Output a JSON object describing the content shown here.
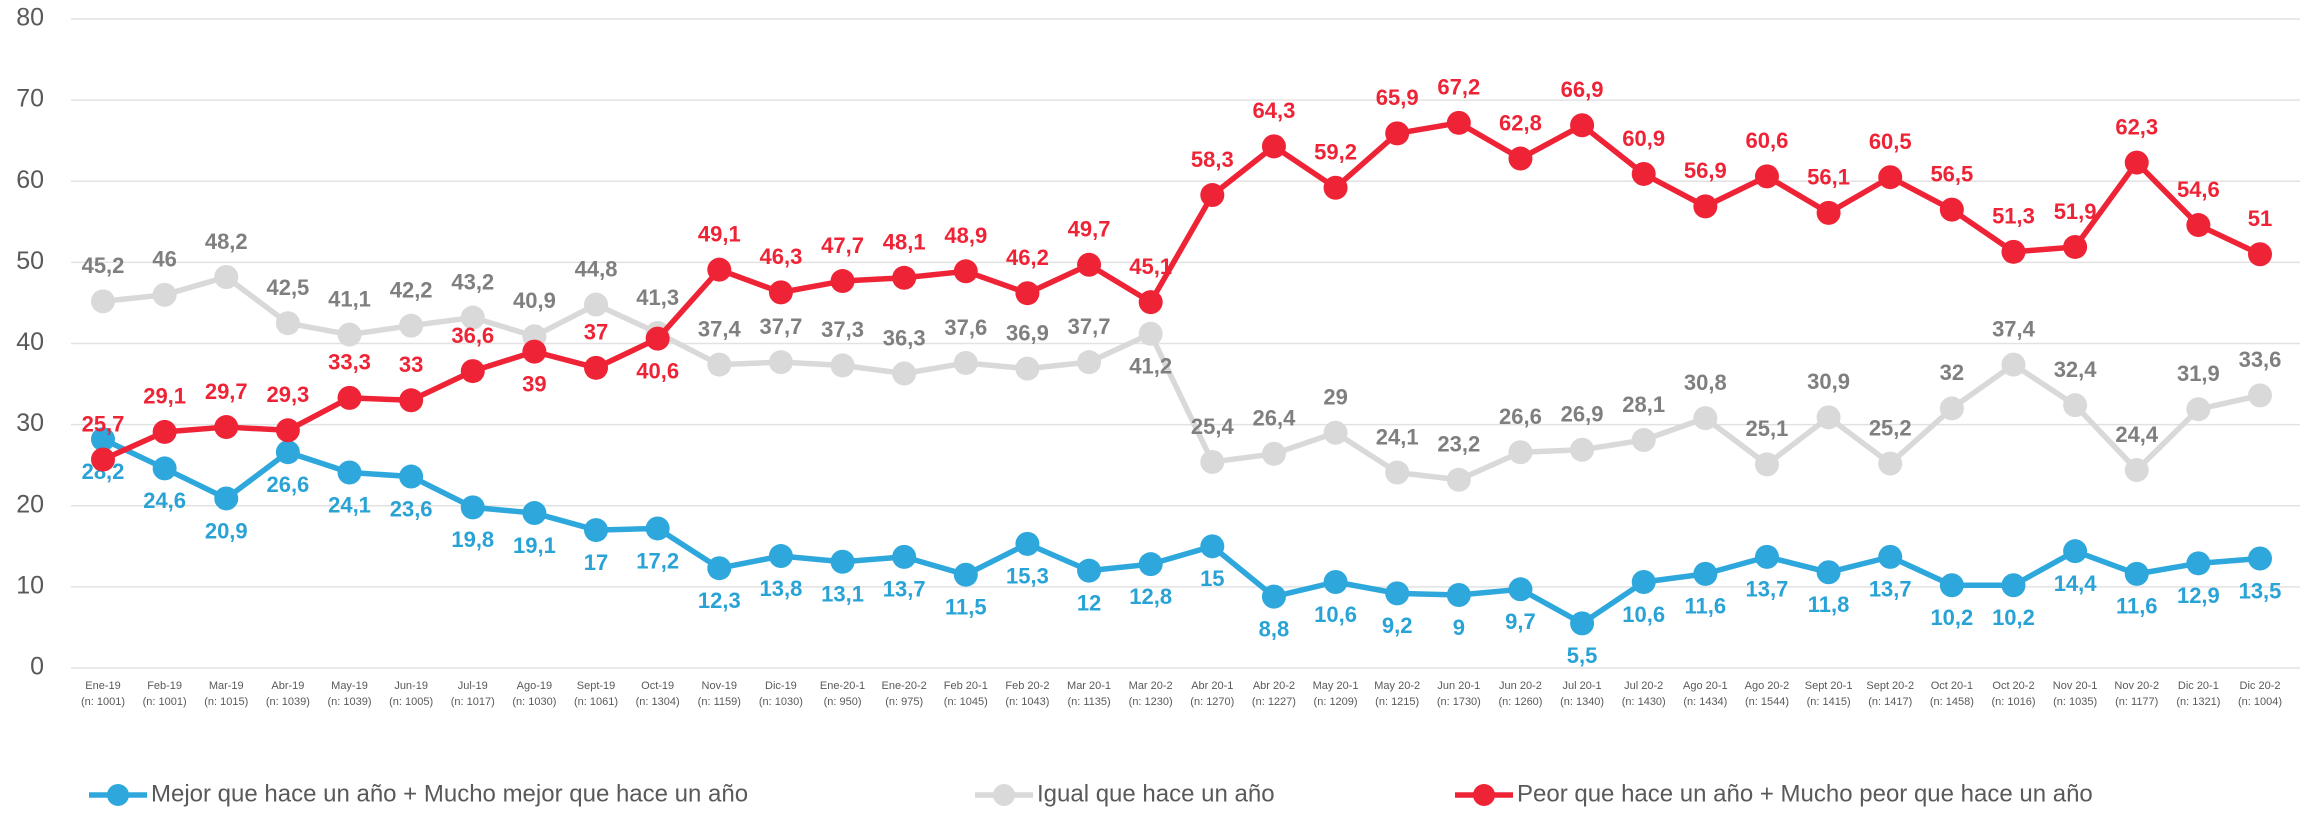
{
  "chart_data": {
    "type": "line",
    "categories": [
      "Ene-19",
      "Feb-19",
      "Mar-19",
      "Abr-19",
      "May-19",
      "Jun-19",
      "Jul-19",
      "Ago-19",
      "Sept-19",
      "Oct-19",
      "Nov-19",
      "Dic-19",
      "Ene-20-1",
      "Ene-20-2",
      "Feb 20-1",
      "Feb 20-2",
      "Mar 20-1",
      "Mar 20-2",
      "Abr 20-1",
      "Abr 20-2",
      "May 20-1",
      "May 20-2",
      "Jun 20-1",
      "Jun 20-2",
      "Jul 20-1",
      "Jul 20-2",
      "Ago 20-1",
      "Ago 20-2",
      "Sept 20-1",
      "Sept 20-2",
      "Oct 20-1",
      "Oct 20-2",
      "Nov 20-1",
      "Nov 20-2",
      "Dic 20-1",
      "Dic 20-2"
    ],
    "category_notes": [
      "(n: 1001)",
      "(n: 1001)",
      "(n: 1015)",
      "(n: 1039)",
      "(n: 1039)",
      "(n: 1005)",
      "(n: 1017)",
      "(n: 1030)",
      "(n: 1061)",
      "(n: 1304)",
      "(n: 1159)",
      "(n: 1030)",
      "(n: 950)",
      "(n: 975)",
      "(n: 1045)",
      "(n: 1043)",
      "(n: 1135)",
      "(n: 1230)",
      "(n: 1270)",
      "(n: 1227)",
      "(n: 1209)",
      "(n: 1215)",
      "(n: 1730)",
      "(n: 1260)",
      "(n: 1340)",
      "(n: 1430)",
      "(n: 1434)",
      "(n: 1544)",
      "(n: 1415)",
      "(n: 1417)",
      "(n: 1458)",
      "(n: 1016)",
      "(n: 1035)",
      "(n: 1177)",
      "(n: 1321)",
      "(n: 1004)"
    ],
    "series": [
      {
        "name": "Mejor que hace un año + Mucho mejor que hace un año",
        "color": "#2ea8dc",
        "label_color": "#29a3d6",
        "values": [
          28.2,
          24.6,
          20.9,
          26.6,
          24.1,
          23.6,
          19.8,
          19.1,
          17,
          17.2,
          12.3,
          13.8,
          13.1,
          13.7,
          11.5,
          15.3,
          12,
          12.8,
          15,
          8.8,
          10.6,
          9.2,
          9,
          9.7,
          5.5,
          10.6,
          11.6,
          13.7,
          11.8,
          13.7,
          10.2,
          10.2,
          14.4,
          11.6,
          12.9,
          13.5
        ],
        "value_labels": [
          "28,2",
          "24,6",
          "20,9",
          "26,6",
          "24,1",
          "23,6",
          "19,8",
          "19,1",
          "17",
          "17,2",
          "12,3",
          "13,8",
          "13,1",
          "13,7",
          "11,5",
          "15,3",
          "12",
          "12,8",
          "15",
          "8,8",
          "10,6",
          "9,2",
          "9",
          "9,7",
          "5,5",
          "10,6",
          "11,6",
          "13,7",
          "11,8",
          "13,7",
          "10,2",
          "10,2",
          "14,4",
          "11,6",
          "12,9",
          "13,5"
        ]
      },
      {
        "name": "Igual que hace un año",
        "color": "#d9d9d9",
        "label_color": "#7f7f7f",
        "values": [
          45.2,
          46,
          48.2,
          42.5,
          41.1,
          42.2,
          43.2,
          40.9,
          44.8,
          41.3,
          37.4,
          37.7,
          37.3,
          36.3,
          37.6,
          36.9,
          37.7,
          41.2,
          25.4,
          26.4,
          29,
          24.1,
          23.2,
          26.6,
          26.9,
          28.1,
          30.8,
          25.1,
          30.9,
          25.2,
          32,
          37.4,
          32.4,
          24.4,
          31.9,
          33.6
        ],
        "value_labels": [
          "45,2",
          "46",
          "48,2",
          "42,5",
          "41,1",
          "42,2",
          "43,2",
          "40,9",
          "44,8",
          "41,3",
          "37,4",
          "37,7",
          "37,3",
          "36,3",
          "37,6",
          "36,9",
          "37,7",
          "41,2",
          "25,4",
          "26,4",
          "29",
          "24,1",
          "23,2",
          "26,6",
          "26,9",
          "28,1",
          "30,8",
          "25,1",
          "30,9",
          "25,2",
          "32",
          "37,4",
          "32,4",
          "24,4",
          "31,9",
          "33,6"
        ]
      },
      {
        "name": "Peor que hace un año + Mucho peor que hace un año",
        "color": "#ee2436",
        "label_color": "#ee2436",
        "values": [
          25.7,
          29.1,
          29.7,
          29.3,
          33.3,
          33,
          36.6,
          39,
          37,
          40.6,
          49.1,
          46.3,
          47.7,
          48.1,
          48.9,
          46.2,
          49.7,
          45.1,
          58.3,
          64.3,
          59.2,
          65.9,
          67.2,
          62.8,
          66.9,
          60.9,
          56.9,
          60.6,
          56.1,
          60.5,
          56.5,
          51.3,
          51.9,
          62.3,
          54.6,
          51
        ],
        "value_labels": [
          "25,7",
          "29,1",
          "29,7",
          "29,3",
          "33,3",
          "33",
          "36,6",
          "39",
          "37",
          "40,6",
          "49,1",
          "46,3",
          "47,7",
          "48,1",
          "48,9",
          "46,2",
          "49,7",
          "45,1",
          "58,3",
          "64,3",
          "59,2",
          "65,9",
          "67,2",
          "62,8",
          "66,9",
          "60,9",
          "56,9",
          "60,6",
          "56,1",
          "60,5",
          "56,5",
          "51,3",
          "51,9",
          "62,3",
          "54,6",
          "51"
        ]
      }
    ],
    "ylim": [
      0,
      80
    ],
    "yticks": [
      0,
      10,
      20,
      30,
      40,
      50,
      60,
      70,
      80
    ],
    "grid": true,
    "legend": "bottom"
  }
}
